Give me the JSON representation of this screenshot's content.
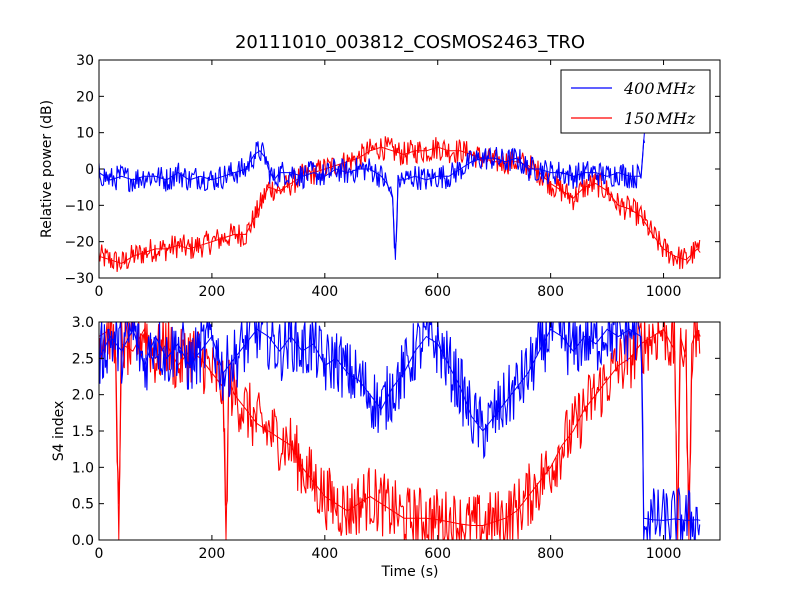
{
  "title": "20111010_003812_COSMOS2463_TRO",
  "colors": {
    "400MHz": "#0000ff",
    "150MHz": "#ff0000",
    "axes": "#000000",
    "background": "#ffffff"
  },
  "chart_data": [
    {
      "type": "line",
      "title": "20111010_003812_COSMOS2463_TRO",
      "xlabel": "",
      "ylabel": "Relative power (dB)",
      "xlim": [
        0,
        1100
      ],
      "ylim": [
        -30,
        30
      ],
      "x_ticks": [
        0,
        200,
        400,
        600,
        800,
        1000
      ],
      "y_ticks": [
        -30,
        -20,
        -10,
        0,
        10,
        20,
        30
      ],
      "x_tick_labels": [
        "0",
        "200",
        "400",
        "600",
        "800",
        "1000"
      ],
      "y_tick_labels": [
        "−30",
        "−20",
        "−10",
        "0",
        "10",
        "20",
        "30"
      ],
      "grid": false,
      "legend": {
        "placement": "top-right",
        "entries": [
          "400MHz",
          "150MHz"
        ]
      },
      "series": [
        {
          "name": "400MHz",
          "color": "#0000ff",
          "points": [
            [
              0,
              -1
            ],
            [
              20,
              -3
            ],
            [
              40,
              -2
            ],
            [
              60,
              -3
            ],
            [
              80,
              -2
            ],
            [
              100,
              -2
            ],
            [
              120,
              -3
            ],
            [
              140,
              -1
            ],
            [
              160,
              -3
            ],
            [
              180,
              -2
            ],
            [
              200,
              -3
            ],
            [
              220,
              -2
            ],
            [
              240,
              -1
            ],
            [
              260,
              0
            ],
            [
              275,
              4
            ],
            [
              285,
              5
            ],
            [
              295,
              3
            ],
            [
              300,
              0
            ],
            [
              310,
              -3
            ],
            [
              320,
              -1
            ],
            [
              340,
              -1
            ],
            [
              360,
              -2
            ],
            [
              380,
              -1
            ],
            [
              400,
              -2
            ],
            [
              420,
              0
            ],
            [
              440,
              -1
            ],
            [
              460,
              0
            ],
            [
              480,
              0
            ],
            [
              500,
              -2
            ],
            [
              510,
              -4
            ],
            [
              520,
              -8
            ],
            [
              525,
              -25
            ],
            [
              530,
              -3
            ],
            [
              540,
              -3
            ],
            [
              560,
              -2
            ],
            [
              580,
              -3
            ],
            [
              600,
              -2
            ],
            [
              620,
              -2
            ],
            [
              640,
              0
            ],
            [
              660,
              2
            ],
            [
              680,
              3
            ],
            [
              700,
              3
            ],
            [
              720,
              2
            ],
            [
              740,
              3
            ],
            [
              760,
              0
            ],
            [
              780,
              0
            ],
            [
              800,
              -1
            ],
            [
              820,
              -1
            ],
            [
              840,
              -2
            ],
            [
              860,
              -1
            ],
            [
              880,
              -1
            ],
            [
              900,
              -2
            ],
            [
              920,
              -1
            ],
            [
              940,
              -2
            ],
            [
              960,
              -2
            ],
            [
              966,
              10
            ],
            [
              968,
              13
            ]
          ]
        },
        {
          "name": "150MHz",
          "color": "#ff0000",
          "points": [
            [
              0,
              -24
            ],
            [
              20,
              -25
            ],
            [
              40,
              -26
            ],
            [
              60,
              -24
            ],
            [
              80,
              -23
            ],
            [
              100,
              -22
            ],
            [
              120,
              -22
            ],
            [
              140,
              -21
            ],
            [
              160,
              -22
            ],
            [
              180,
              -21
            ],
            [
              200,
              -20
            ],
            [
              220,
              -19
            ],
            [
              240,
              -18
            ],
            [
              260,
              -18
            ],
            [
              280,
              -12
            ],
            [
              300,
              -5
            ],
            [
              320,
              -6
            ],
            [
              340,
              -4
            ],
            [
              360,
              -2
            ],
            [
              380,
              -1
            ],
            [
              400,
              0
            ],
            [
              420,
              1
            ],
            [
              440,
              2
            ],
            [
              460,
              3
            ],
            [
              480,
              5
            ],
            [
              500,
              6
            ],
            [
              520,
              5
            ],
            [
              540,
              4
            ],
            [
              560,
              5
            ],
            [
              580,
              5
            ],
            [
              600,
              6
            ],
            [
              620,
              5
            ],
            [
              640,
              5
            ],
            [
              660,
              4
            ],
            [
              680,
              3
            ],
            [
              700,
              2
            ],
            [
              720,
              2
            ],
            [
              740,
              2
            ],
            [
              760,
              1
            ],
            [
              780,
              -1
            ],
            [
              800,
              -4
            ],
            [
              820,
              -6
            ],
            [
              840,
              -8
            ],
            [
              860,
              -5
            ],
            [
              880,
              -4
            ],
            [
              900,
              -6
            ],
            [
              920,
              -10
            ],
            [
              940,
              -11
            ],
            [
              960,
              -13
            ],
            [
              980,
              -18
            ],
            [
              1000,
              -22
            ],
            [
              1020,
              -24
            ],
            [
              1040,
              -25
            ],
            [
              1060,
              -22
            ],
            [
              1065,
              -23
            ]
          ]
        }
      ]
    },
    {
      "type": "line",
      "title": "",
      "xlabel": "Time (s)",
      "ylabel": "S4 index",
      "xlim": [
        0,
        1100
      ],
      "ylim": [
        0,
        3
      ],
      "x_ticks": [
        0,
        200,
        400,
        600,
        800,
        1000
      ],
      "y_ticks": [
        0,
        0.5,
        1,
        1.5,
        2,
        2.5,
        3
      ],
      "x_tick_labels": [
        "0",
        "200",
        "400",
        "600",
        "800",
        "1000"
      ],
      "y_tick_labels": [
        "0.0",
        "0.5",
        "1.0",
        "1.5",
        "2.0",
        "2.5",
        "3.0"
      ],
      "grid": false,
      "series": [
        {
          "name": "400MHz",
          "color": "#0000ff",
          "points": [
            [
              0,
              2.5
            ],
            [
              20,
              2.8
            ],
            [
              40,
              2.6
            ],
            [
              60,
              2.9
            ],
            [
              80,
              2.4
            ],
            [
              100,
              2.8
            ],
            [
              120,
              2.5
            ],
            [
              140,
              2.7
            ],
            [
              160,
              2.4
            ],
            [
              180,
              2.6
            ],
            [
              200,
              2.8
            ],
            [
              220,
              2.3
            ],
            [
              240,
              2.5
            ],
            [
              260,
              2.7
            ],
            [
              280,
              2.9
            ],
            [
              300,
              2.8
            ],
            [
              320,
              2.6
            ],
            [
              340,
              2.8
            ],
            [
              360,
              2.6
            ],
            [
              380,
              2.7
            ],
            [
              400,
              2.4
            ],
            [
              420,
              2.5
            ],
            [
              440,
              2.3
            ],
            [
              460,
              2.2
            ],
            [
              480,
              2.0
            ],
            [
              500,
              1.8
            ],
            [
              520,
              2.1
            ],
            [
              540,
              2.3
            ],
            [
              560,
              2.6
            ],
            [
              580,
              2.8
            ],
            [
              600,
              2.7
            ],
            [
              620,
              2.4
            ],
            [
              640,
              2.1
            ],
            [
              660,
              1.7
            ],
            [
              680,
              1.5
            ],
            [
              700,
              1.7
            ],
            [
              720,
              1.9
            ],
            [
              740,
              2.1
            ],
            [
              760,
              2.3
            ],
            [
              780,
              2.6
            ],
            [
              800,
              2.9
            ],
            [
              820,
              2.8
            ],
            [
              840,
              2.6
            ],
            [
              860,
              2.8
            ],
            [
              880,
              2.7
            ],
            [
              900,
              2.9
            ],
            [
              920,
              2.8
            ],
            [
              940,
              2.9
            ],
            [
              960,
              2.8
            ],
            [
              965,
              0.3
            ],
            [
              980,
              0.28
            ],
            [
              1000,
              0.27
            ],
            [
              1020,
              0.29
            ],
            [
              1040,
              0.27
            ],
            [
              1060,
              0.28
            ],
            [
              1065,
              0.27
            ]
          ]
        },
        {
          "name": "150MHz",
          "color": "#ff0000",
          "points": [
            [
              0,
              2.8
            ],
            [
              20,
              2.9
            ],
            [
              30,
              2.5
            ],
            [
              35,
              0.0
            ],
            [
              40,
              2.7
            ],
            [
              60,
              2.6
            ],
            [
              80,
              2.9
            ],
            [
              100,
              2.5
            ],
            [
              120,
              2.7
            ],
            [
              140,
              2.4
            ],
            [
              160,
              2.6
            ],
            [
              180,
              2.5
            ],
            [
              200,
              2.3
            ],
            [
              220,
              2.1
            ],
            [
              225,
              0.0
            ],
            [
              230,
              2.2
            ],
            [
              240,
              2.0
            ],
            [
              260,
              1.8
            ],
            [
              280,
              1.6
            ],
            [
              300,
              1.5
            ],
            [
              320,
              1.4
            ],
            [
              340,
              1.3
            ],
            [
              360,
              1.0
            ],
            [
              380,
              0.8
            ],
            [
              400,
              0.6
            ],
            [
              420,
              0.5
            ],
            [
              440,
              0.4
            ],
            [
              460,
              0.5
            ],
            [
              480,
              0.6
            ],
            [
              500,
              0.5
            ],
            [
              520,
              0.4
            ],
            [
              540,
              0.3
            ],
            [
              560,
              0.3
            ],
            [
              580,
              0.3
            ],
            [
              600,
              0.28
            ],
            [
              620,
              0.25
            ],
            [
              640,
              0.22
            ],
            [
              660,
              0.2
            ],
            [
              680,
              0.2
            ],
            [
              700,
              0.25
            ],
            [
              720,
              0.3
            ],
            [
              740,
              0.4
            ],
            [
              760,
              0.6
            ],
            [
              780,
              0.8
            ],
            [
              800,
              1.0
            ],
            [
              820,
              1.3
            ],
            [
              840,
              1.5
            ],
            [
              860,
              1.8
            ],
            [
              880,
              2.0
            ],
            [
              900,
              2.2
            ],
            [
              920,
              2.4
            ],
            [
              940,
              2.5
            ],
            [
              960,
              2.7
            ],
            [
              980,
              2.8
            ],
            [
              1000,
              2.9
            ],
            [
              1020,
              2.6
            ],
            [
              1025,
              0.0
            ],
            [
              1030,
              2.8
            ],
            [
              1040,
              2.5
            ],
            [
              1045,
              0.0
            ],
            [
              1050,
              2.7
            ],
            [
              1060,
              2.9
            ],
            [
              1065,
              2.8
            ]
          ]
        }
      ]
    }
  ]
}
